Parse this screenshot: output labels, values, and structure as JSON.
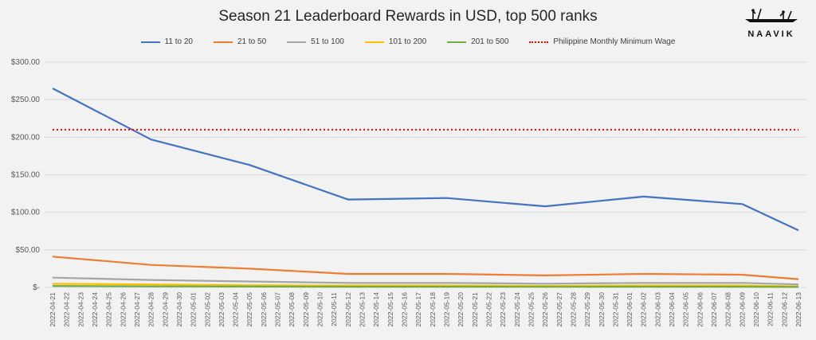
{
  "brand": {
    "name": "NAAVIK",
    "logo_icon": "boat-rowers-icon"
  },
  "chart_data": {
    "type": "line",
    "title": "Season 21 Leaderboard Rewards in USD, top 500 ranks",
    "xlabel": "",
    "ylabel": "",
    "ylim": [
      0,
      300
    ],
    "yticks": [
      0,
      50,
      100,
      150,
      200,
      250,
      300
    ],
    "ytick_labels": [
      "$-",
      "$50.00",
      "$100.00",
      "$150.00",
      "$200.00",
      "$250.00",
      "$300.00"
    ],
    "grid": true,
    "legend_position": "top",
    "x": [
      "2022-04-21",
      "2022-04-22",
      "2022-04-23",
      "2022-04-24",
      "2022-04-25",
      "2022-04-26",
      "2022-04-27",
      "2022-04-28",
      "2022-04-29",
      "2022-04-30",
      "2022-05-01",
      "2022-05-02",
      "2022-05-03",
      "2022-05-04",
      "2022-05-05",
      "2022-05-06",
      "2022-05-07",
      "2022-05-08",
      "2022-05-09",
      "2022-05-10",
      "2022-05-11",
      "2022-05-12",
      "2022-05-13",
      "2022-05-14",
      "2022-05-15",
      "2022-05-16",
      "2022-05-17",
      "2022-05-18",
      "2022-05-19",
      "2022-05-20",
      "2022-05-21",
      "2022-05-22",
      "2022-05-23",
      "2022-05-24",
      "2022-05-25",
      "2022-05-26",
      "2022-05-27",
      "2022-05-28",
      "2022-05-29",
      "2022-05-30",
      "2022-05-31",
      "2022-06-01",
      "2022-06-02",
      "2022-06-03",
      "2022-06-04",
      "2022-06-05",
      "2022-06-06",
      "2022-06-07",
      "2022-06-08",
      "2022-06-09",
      "2022-06-10",
      "2022-06-11",
      "2022-06-12",
      "2022-06-13"
    ],
    "series": [
      {
        "name": "11 to 20",
        "color": "#4472c4",
        "dashed": false,
        "points": [
          [
            "2022-04-21",
            265
          ],
          [
            "2022-04-28",
            197
          ],
          [
            "2022-05-05",
            163
          ],
          [
            "2022-05-12",
            117
          ],
          [
            "2022-05-19",
            119
          ],
          [
            "2022-05-26",
            108
          ],
          [
            "2022-06-02",
            121
          ],
          [
            "2022-06-09",
            111
          ],
          [
            "2022-06-13",
            76
          ]
        ]
      },
      {
        "name": "21 to 50",
        "color": "#ed7d31",
        "dashed": false,
        "points": [
          [
            "2022-04-21",
            41
          ],
          [
            "2022-04-28",
            30
          ],
          [
            "2022-05-05",
            25
          ],
          [
            "2022-05-12",
            18
          ],
          [
            "2022-05-19",
            18
          ],
          [
            "2022-05-26",
            16
          ],
          [
            "2022-06-02",
            18
          ],
          [
            "2022-06-09",
            17
          ],
          [
            "2022-06-13",
            11
          ]
        ]
      },
      {
        "name": "51 to 100",
        "color": "#a5a5a5",
        "dashed": false,
        "points": [
          [
            "2022-04-21",
            13
          ],
          [
            "2022-04-28",
            10
          ],
          [
            "2022-05-05",
            8
          ],
          [
            "2022-05-12",
            6
          ],
          [
            "2022-05-19",
            6
          ],
          [
            "2022-05-26",
            5
          ],
          [
            "2022-06-02",
            6
          ],
          [
            "2022-06-09",
            6
          ],
          [
            "2022-06-13",
            4
          ]
        ]
      },
      {
        "name": "101 to 200",
        "color": "#ffc000",
        "dashed": false,
        "points": [
          [
            "2022-04-21",
            5
          ],
          [
            "2022-04-28",
            4
          ],
          [
            "2022-05-05",
            3
          ],
          [
            "2022-05-12",
            2.5
          ],
          [
            "2022-05-19",
            2.5
          ],
          [
            "2022-05-26",
            2
          ],
          [
            "2022-06-02",
            2.5
          ],
          [
            "2022-06-09",
            2.5
          ],
          [
            "2022-06-13",
            1.5
          ]
        ]
      },
      {
        "name": "201 to 500",
        "color": "#70ad47",
        "dashed": false,
        "points": [
          [
            "2022-04-21",
            2
          ],
          [
            "2022-04-28",
            1.5
          ],
          [
            "2022-05-05",
            1.2
          ],
          [
            "2022-05-12",
            1
          ],
          [
            "2022-05-19",
            1
          ],
          [
            "2022-05-26",
            0.8
          ],
          [
            "2022-06-02",
            1
          ],
          [
            "2022-06-09",
            1
          ],
          [
            "2022-06-13",
            0.6
          ]
        ]
      },
      {
        "name": "Philippine Monthly Minimum Wage",
        "color": "#ff0000",
        "dashed": true,
        "points": [
          [
            "2022-04-21",
            210
          ],
          [
            "2022-06-13",
            210
          ]
        ]
      }
    ]
  }
}
